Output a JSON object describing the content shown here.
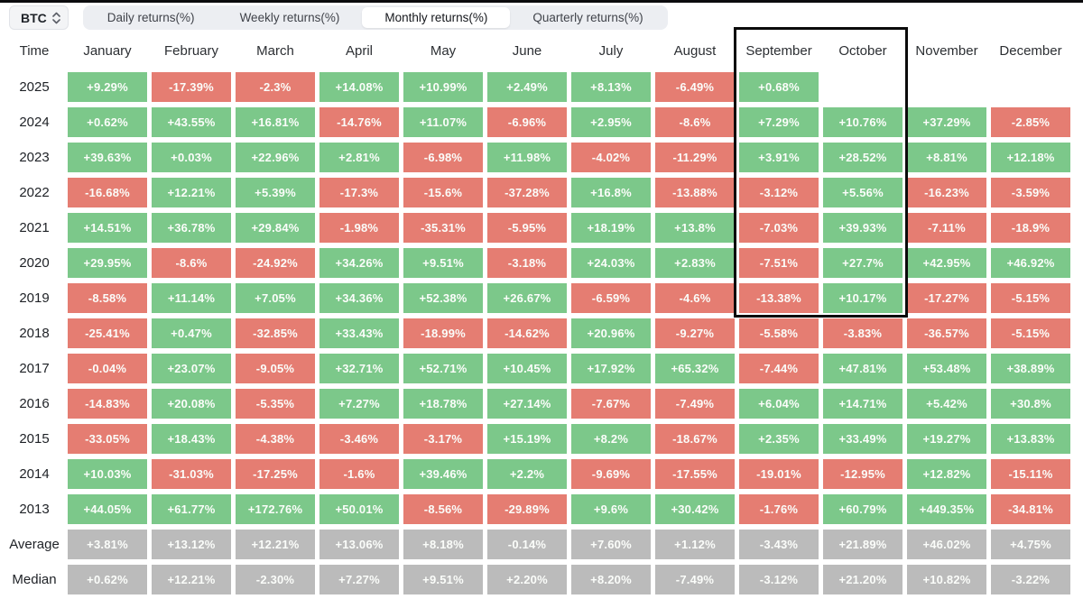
{
  "toolbar": {
    "symbol": "BTC",
    "tabs": [
      {
        "label": "Daily returns(%)",
        "active": false
      },
      {
        "label": "Weekly returns(%)",
        "active": false
      },
      {
        "label": "Monthly returns(%)",
        "active": true
      },
      {
        "label": "Quarterly returns(%)",
        "active": false
      }
    ]
  },
  "colors": {
    "green": "#7cc88a",
    "red": "#e57d72",
    "gray": "#bbbbbb"
  },
  "table": {
    "time_header": "Time",
    "months": [
      "January",
      "February",
      "March",
      "April",
      "May",
      "June",
      "July",
      "August",
      "September",
      "October",
      "November",
      "December"
    ],
    "rows": [
      {
        "label": "2025",
        "cells": [
          {
            "v": "+9.29%",
            "c": "green"
          },
          {
            "v": "-17.39%",
            "c": "red"
          },
          {
            "v": "-2.3%",
            "c": "red"
          },
          {
            "v": "+14.08%",
            "c": "green"
          },
          {
            "v": "+10.99%",
            "c": "green"
          },
          {
            "v": "+2.49%",
            "c": "green"
          },
          {
            "v": "+8.13%",
            "c": "green"
          },
          {
            "v": "-6.49%",
            "c": "red"
          },
          {
            "v": "+0.68%",
            "c": "green"
          },
          {
            "v": "",
            "c": "empty"
          },
          {
            "v": "",
            "c": "empty"
          },
          {
            "v": "",
            "c": "empty"
          }
        ]
      },
      {
        "label": "2024",
        "cells": [
          {
            "v": "+0.62%",
            "c": "green"
          },
          {
            "v": "+43.55%",
            "c": "green"
          },
          {
            "v": "+16.81%",
            "c": "green"
          },
          {
            "v": "-14.76%",
            "c": "red"
          },
          {
            "v": "+11.07%",
            "c": "green"
          },
          {
            "v": "-6.96%",
            "c": "red"
          },
          {
            "v": "+2.95%",
            "c": "green"
          },
          {
            "v": "-8.6%",
            "c": "red"
          },
          {
            "v": "+7.29%",
            "c": "green"
          },
          {
            "v": "+10.76%",
            "c": "green"
          },
          {
            "v": "+37.29%",
            "c": "green"
          },
          {
            "v": "-2.85%",
            "c": "red"
          }
        ]
      },
      {
        "label": "2023",
        "cells": [
          {
            "v": "+39.63%",
            "c": "green"
          },
          {
            "v": "+0.03%",
            "c": "green"
          },
          {
            "v": "+22.96%",
            "c": "green"
          },
          {
            "v": "+2.81%",
            "c": "green"
          },
          {
            "v": "-6.98%",
            "c": "red"
          },
          {
            "v": "+11.98%",
            "c": "green"
          },
          {
            "v": "-4.02%",
            "c": "red"
          },
          {
            "v": "-11.29%",
            "c": "red"
          },
          {
            "v": "+3.91%",
            "c": "green"
          },
          {
            "v": "+28.52%",
            "c": "green"
          },
          {
            "v": "+8.81%",
            "c": "green"
          },
          {
            "v": "+12.18%",
            "c": "green"
          }
        ]
      },
      {
        "label": "2022",
        "cells": [
          {
            "v": "-16.68%",
            "c": "red"
          },
          {
            "v": "+12.21%",
            "c": "green"
          },
          {
            "v": "+5.39%",
            "c": "green"
          },
          {
            "v": "-17.3%",
            "c": "red"
          },
          {
            "v": "-15.6%",
            "c": "red"
          },
          {
            "v": "-37.28%",
            "c": "red"
          },
          {
            "v": "+16.8%",
            "c": "green"
          },
          {
            "v": "-13.88%",
            "c": "red"
          },
          {
            "v": "-3.12%",
            "c": "red"
          },
          {
            "v": "+5.56%",
            "c": "green"
          },
          {
            "v": "-16.23%",
            "c": "red"
          },
          {
            "v": "-3.59%",
            "c": "red"
          }
        ]
      },
      {
        "label": "2021",
        "cells": [
          {
            "v": "+14.51%",
            "c": "green"
          },
          {
            "v": "+36.78%",
            "c": "green"
          },
          {
            "v": "+29.84%",
            "c": "green"
          },
          {
            "v": "-1.98%",
            "c": "red"
          },
          {
            "v": "-35.31%",
            "c": "red"
          },
          {
            "v": "-5.95%",
            "c": "red"
          },
          {
            "v": "+18.19%",
            "c": "green"
          },
          {
            "v": "+13.8%",
            "c": "green"
          },
          {
            "v": "-7.03%",
            "c": "red"
          },
          {
            "v": "+39.93%",
            "c": "green"
          },
          {
            "v": "-7.11%",
            "c": "red"
          },
          {
            "v": "-18.9%",
            "c": "red"
          }
        ]
      },
      {
        "label": "2020",
        "cells": [
          {
            "v": "+29.95%",
            "c": "green"
          },
          {
            "v": "-8.6%",
            "c": "red"
          },
          {
            "v": "-24.92%",
            "c": "red"
          },
          {
            "v": "+34.26%",
            "c": "green"
          },
          {
            "v": "+9.51%",
            "c": "green"
          },
          {
            "v": "-3.18%",
            "c": "red"
          },
          {
            "v": "+24.03%",
            "c": "green"
          },
          {
            "v": "+2.83%",
            "c": "green"
          },
          {
            "v": "-7.51%",
            "c": "red"
          },
          {
            "v": "+27.7%",
            "c": "green"
          },
          {
            "v": "+42.95%",
            "c": "green"
          },
          {
            "v": "+46.92%",
            "c": "green"
          }
        ]
      },
      {
        "label": "2019",
        "cells": [
          {
            "v": "-8.58%",
            "c": "red"
          },
          {
            "v": "+11.14%",
            "c": "green"
          },
          {
            "v": "+7.05%",
            "c": "green"
          },
          {
            "v": "+34.36%",
            "c": "green"
          },
          {
            "v": "+52.38%",
            "c": "green"
          },
          {
            "v": "+26.67%",
            "c": "green"
          },
          {
            "v": "-6.59%",
            "c": "red"
          },
          {
            "v": "-4.6%",
            "c": "red"
          },
          {
            "v": "-13.38%",
            "c": "red"
          },
          {
            "v": "+10.17%",
            "c": "green"
          },
          {
            "v": "-17.27%",
            "c": "red"
          },
          {
            "v": "-5.15%",
            "c": "red"
          }
        ]
      },
      {
        "label": "2018",
        "cells": [
          {
            "v": "-25.41%",
            "c": "red"
          },
          {
            "v": "+0.47%",
            "c": "green"
          },
          {
            "v": "-32.85%",
            "c": "red"
          },
          {
            "v": "+33.43%",
            "c": "green"
          },
          {
            "v": "-18.99%",
            "c": "red"
          },
          {
            "v": "-14.62%",
            "c": "red"
          },
          {
            "v": "+20.96%",
            "c": "green"
          },
          {
            "v": "-9.27%",
            "c": "red"
          },
          {
            "v": "-5.58%",
            "c": "red"
          },
          {
            "v": "-3.83%",
            "c": "red"
          },
          {
            "v": "-36.57%",
            "c": "red"
          },
          {
            "v": "-5.15%",
            "c": "red"
          }
        ]
      },
      {
        "label": "2017",
        "cells": [
          {
            "v": "-0.04%",
            "c": "red"
          },
          {
            "v": "+23.07%",
            "c": "green"
          },
          {
            "v": "-9.05%",
            "c": "red"
          },
          {
            "v": "+32.71%",
            "c": "green"
          },
          {
            "v": "+52.71%",
            "c": "green"
          },
          {
            "v": "+10.45%",
            "c": "green"
          },
          {
            "v": "+17.92%",
            "c": "green"
          },
          {
            "v": "+65.32%",
            "c": "green"
          },
          {
            "v": "-7.44%",
            "c": "red"
          },
          {
            "v": "+47.81%",
            "c": "green"
          },
          {
            "v": "+53.48%",
            "c": "green"
          },
          {
            "v": "+38.89%",
            "c": "green"
          }
        ]
      },
      {
        "label": "2016",
        "cells": [
          {
            "v": "-14.83%",
            "c": "red"
          },
          {
            "v": "+20.08%",
            "c": "green"
          },
          {
            "v": "-5.35%",
            "c": "red"
          },
          {
            "v": "+7.27%",
            "c": "green"
          },
          {
            "v": "+18.78%",
            "c": "green"
          },
          {
            "v": "+27.14%",
            "c": "green"
          },
          {
            "v": "-7.67%",
            "c": "red"
          },
          {
            "v": "-7.49%",
            "c": "red"
          },
          {
            "v": "+6.04%",
            "c": "green"
          },
          {
            "v": "+14.71%",
            "c": "green"
          },
          {
            "v": "+5.42%",
            "c": "green"
          },
          {
            "v": "+30.8%",
            "c": "green"
          }
        ]
      },
      {
        "label": "2015",
        "cells": [
          {
            "v": "-33.05%",
            "c": "red"
          },
          {
            "v": "+18.43%",
            "c": "green"
          },
          {
            "v": "-4.38%",
            "c": "red"
          },
          {
            "v": "-3.46%",
            "c": "red"
          },
          {
            "v": "-3.17%",
            "c": "red"
          },
          {
            "v": "+15.19%",
            "c": "green"
          },
          {
            "v": "+8.2%",
            "c": "green"
          },
          {
            "v": "-18.67%",
            "c": "red"
          },
          {
            "v": "+2.35%",
            "c": "green"
          },
          {
            "v": "+33.49%",
            "c": "green"
          },
          {
            "v": "+19.27%",
            "c": "green"
          },
          {
            "v": "+13.83%",
            "c": "green"
          }
        ]
      },
      {
        "label": "2014",
        "cells": [
          {
            "v": "+10.03%",
            "c": "green"
          },
          {
            "v": "-31.03%",
            "c": "red"
          },
          {
            "v": "-17.25%",
            "c": "red"
          },
          {
            "v": "-1.6%",
            "c": "red"
          },
          {
            "v": "+39.46%",
            "c": "green"
          },
          {
            "v": "+2.2%",
            "c": "green"
          },
          {
            "v": "-9.69%",
            "c": "red"
          },
          {
            "v": "-17.55%",
            "c": "red"
          },
          {
            "v": "-19.01%",
            "c": "red"
          },
          {
            "v": "-12.95%",
            "c": "red"
          },
          {
            "v": "+12.82%",
            "c": "green"
          },
          {
            "v": "-15.11%",
            "c": "red"
          }
        ]
      },
      {
        "label": "2013",
        "cells": [
          {
            "v": "+44.05%",
            "c": "green"
          },
          {
            "v": "+61.77%",
            "c": "green"
          },
          {
            "v": "+172.76%",
            "c": "green"
          },
          {
            "v": "+50.01%",
            "c": "green"
          },
          {
            "v": "-8.56%",
            "c": "red"
          },
          {
            "v": "-29.89%",
            "c": "red"
          },
          {
            "v": "+9.6%",
            "c": "green"
          },
          {
            "v": "+30.42%",
            "c": "green"
          },
          {
            "v": "-1.76%",
            "c": "red"
          },
          {
            "v": "+60.79%",
            "c": "green"
          },
          {
            "v": "+449.35%",
            "c": "green"
          },
          {
            "v": "-34.81%",
            "c": "red"
          }
        ]
      },
      {
        "label": "Average",
        "cells": [
          {
            "v": "+3.81%",
            "c": "gray"
          },
          {
            "v": "+13.12%",
            "c": "gray"
          },
          {
            "v": "+12.21%",
            "c": "gray"
          },
          {
            "v": "+13.06%",
            "c": "gray"
          },
          {
            "v": "+8.18%",
            "c": "gray"
          },
          {
            "v": "-0.14%",
            "c": "gray"
          },
          {
            "v": "+7.60%",
            "c": "gray"
          },
          {
            "v": "+1.12%",
            "c": "gray"
          },
          {
            "v": "-3.43%",
            "c": "gray"
          },
          {
            "v": "+21.89%",
            "c": "gray"
          },
          {
            "v": "+46.02%",
            "c": "gray"
          },
          {
            "v": "+4.75%",
            "c": "gray"
          }
        ]
      },
      {
        "label": "Median",
        "cells": [
          {
            "v": "+0.62%",
            "c": "gray"
          },
          {
            "v": "+12.21%",
            "c": "gray"
          },
          {
            "v": "-2.30%",
            "c": "gray"
          },
          {
            "v": "+7.27%",
            "c": "gray"
          },
          {
            "v": "+9.51%",
            "c": "gray"
          },
          {
            "v": "+2.20%",
            "c": "gray"
          },
          {
            "v": "+8.20%",
            "c": "gray"
          },
          {
            "v": "-7.49%",
            "c": "gray"
          },
          {
            "v": "-3.12%",
            "c": "gray"
          },
          {
            "v": "+21.20%",
            "c": "gray"
          },
          {
            "v": "+10.82%",
            "c": "gray"
          },
          {
            "v": "-3.22%",
            "c": "gray"
          }
        ]
      }
    ]
  },
  "highlight": {
    "columns": [
      "September",
      "October"
    ]
  }
}
